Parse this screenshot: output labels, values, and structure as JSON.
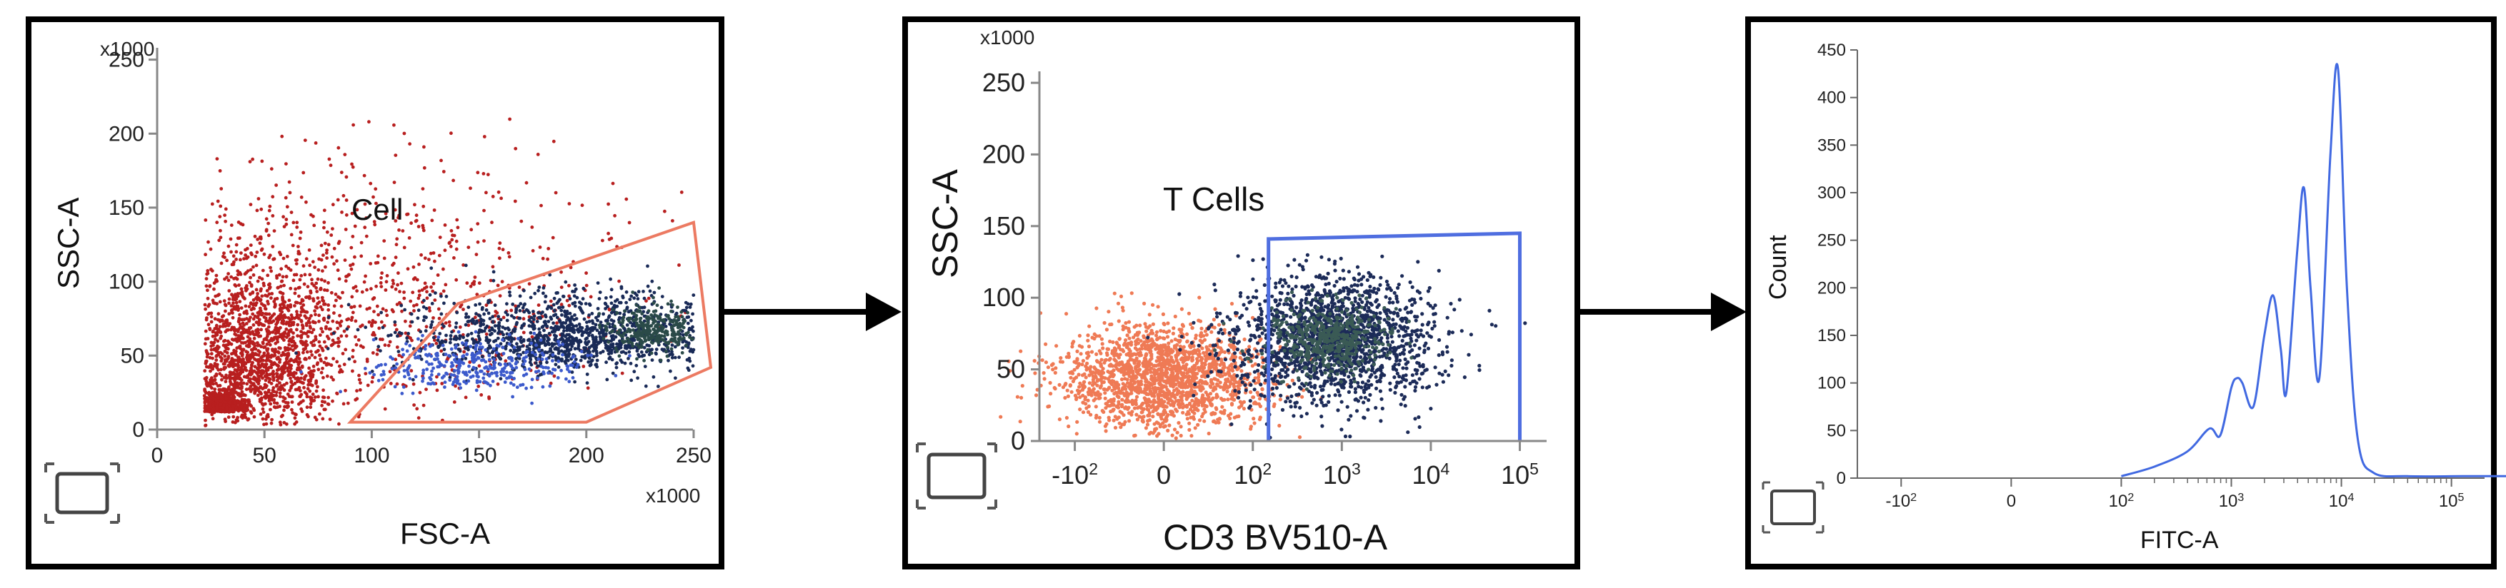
{
  "chart_data": [
    {
      "type": "scatter",
      "title": "",
      "xlabel": "FSC-A",
      "ylabel": "SSC-A",
      "x_multiplier": "x1000",
      "y_multiplier": "x1000",
      "xlim": [
        0,
        258
      ],
      "ylim": [
        0,
        258
      ],
      "xticks": [
        0,
        50,
        100,
        150,
        200,
        250
      ],
      "yticks": [
        0,
        50,
        100,
        150,
        200,
        250
      ],
      "gate": {
        "label": "Cell",
        "shape": "polygon",
        "color": "#ec7a62",
        "vertices": [
          [
            90,
            5
          ],
          [
            200,
            5
          ],
          [
            258,
            42
          ],
          [
            250,
            140
          ],
          [
            140,
            85
          ],
          [
            90,
            5
          ]
        ]
      },
      "series": [
        {
          "color": "#b81f1f",
          "clusters": [
            {
              "cx": 45,
              "cy": 48,
              "sx": 20,
              "sy": 35,
              "n": 1700
            },
            {
              "cx": 30,
              "cy": 12,
              "sx": 5,
              "sy": 6,
              "n": 700
            },
            {
              "cx": 100,
              "cy": 85,
              "sx": 55,
              "sy": 50,
              "n": 900
            }
          ]
        },
        {
          "color": "#192a57",
          "clusters": [
            {
              "cx": 195,
              "cy": 62,
              "sx": 38,
              "sy": 16,
              "n": 1300
            }
          ]
        },
        {
          "color": "#3c5acc",
          "clusters": [
            {
              "cx": 150,
              "cy": 42,
              "sx": 25,
              "sy": 10,
              "n": 350
            }
          ]
        },
        {
          "color": "#2a4a48",
          "clusters": [
            {
              "cx": 232,
              "cy": 66,
              "sx": 10,
              "sy": 9,
              "n": 300
            }
          ]
        }
      ]
    },
    {
      "type": "scatter",
      "title": "",
      "xlabel": "CD3 BV510-A",
      "ylabel": "SSC-A",
      "y_multiplier": "x1000",
      "xscale": "biexponential",
      "ylim": [
        0,
        258
      ],
      "xticks": [
        "-10^2",
        "0",
        "10^2",
        "10^3",
        "10^4",
        "10^5"
      ],
      "yticks": [
        0,
        50,
        100,
        150,
        200,
        250
      ],
      "gate": {
        "label": "T Cells",
        "shape": "rectangle",
        "color": "#4f6ee0",
        "x_range": [
          "1.5x10^2",
          "10^5"
        ],
        "y_range": [
          0,
          145
        ]
      },
      "series": [
        {
          "color": "#ef7a55",
          "clusters": [
            {
              "cx": 0,
              "cy": 45,
              "sx_decades": 0.35,
              "sy": 18,
              "n": 1800
            }
          ]
        },
        {
          "color": "#1c2b58",
          "clusters": [
            {
              "cx": "8x10^2",
              "cy": 72,
              "sx_decades": 0.35,
              "sy": 22,
              "n": 1700
            }
          ]
        },
        {
          "color": "#3a5a55",
          "clusters": [
            {
              "cx": "7x10^2",
              "cy": 72,
              "sx_decades": 0.2,
              "sy": 12,
              "n": 500
            }
          ]
        }
      ]
    },
    {
      "type": "line",
      "title": "",
      "xlabel": "FITC-A",
      "ylabel": "Count",
      "xscale": "biexponential",
      "ylim": [
        0,
        450
      ],
      "yticks": [
        0,
        50,
        100,
        150,
        200,
        250,
        300,
        350,
        400,
        450
      ],
      "xticks": [
        "-10^2",
        "0",
        "10^2",
        "10^3",
        "10^4",
        "10^5"
      ],
      "color": "#4169e1",
      "series": [
        {
          "x_log10": [
            2.0,
            2.3,
            2.6,
            2.8,
            2.9,
            3.0,
            3.05,
            3.1,
            3.2,
            3.3,
            3.38,
            3.45,
            3.5,
            3.6,
            3.66,
            3.72,
            3.8,
            3.9,
            3.97,
            4.05,
            4.15,
            4.3,
            4.6,
            5.1,
            5.5
          ],
          "values": [
            2,
            12,
            28,
            52,
            45,
            95,
            105,
            100,
            75,
            150,
            192,
            135,
            90,
            240,
            305,
            200,
            105,
            340,
            430,
            200,
            40,
            5,
            2,
            2,
            2
          ]
        }
      ]
    }
  ]
}
